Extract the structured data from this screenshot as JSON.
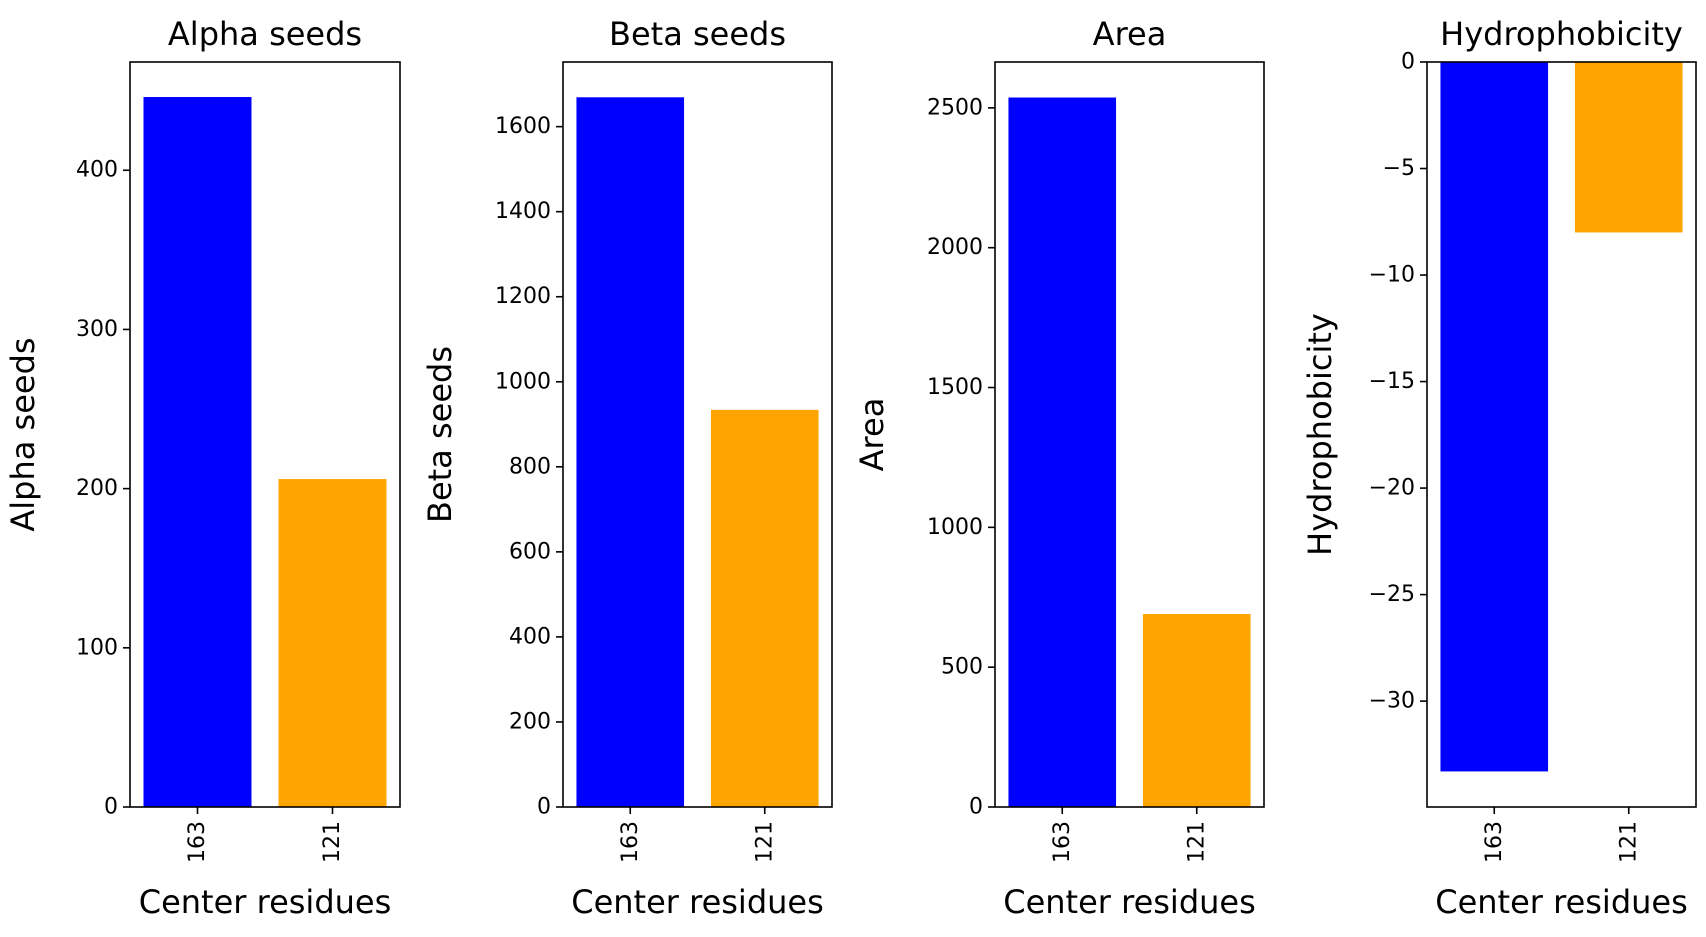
{
  "chart_data": [
    {
      "type": "bar",
      "title": "Alpha seeds",
      "xlabel": "Center residues",
      "ylabel": "Alpha seeds",
      "categories": [
        "163",
        "121"
      ],
      "values": [
        446,
        206
      ],
      "colors": [
        "#0000ff",
        "#ffa500"
      ],
      "ylim": [
        0,
        468
      ],
      "yticks": [
        0,
        100,
        200,
        300,
        400
      ],
      "yticklabels": [
        "0",
        "100",
        "200",
        "300",
        "400"
      ],
      "xtick_rotation": 90,
      "grid": false
    },
    {
      "type": "bar",
      "title": "Beta seeds",
      "xlabel": "Center residues",
      "ylabel": "Beta seeds",
      "categories": [
        "163",
        "121"
      ],
      "values": [
        1669,
        934
      ],
      "colors": [
        "#0000ff",
        "#ffa500"
      ],
      "ylim": [
        0,
        1752
      ],
      "yticks": [
        0,
        200,
        400,
        600,
        800,
        1000,
        1200,
        1400,
        1600
      ],
      "yticklabels": [
        "0",
        "200",
        "400",
        "600",
        "800",
        "1000",
        "1200",
        "1400",
        "1600"
      ],
      "xtick_rotation": 90,
      "grid": false
    },
    {
      "type": "bar",
      "title": "Area",
      "xlabel": "Center residues",
      "ylabel": "Area",
      "categories": [
        "163",
        "121"
      ],
      "values": [
        2537,
        690
      ],
      "colors": [
        "#0000ff",
        "#ffa500"
      ],
      "ylim": [
        0,
        2664
      ],
      "yticks": [
        0,
        500,
        1000,
        1500,
        2000,
        2500
      ],
      "yticklabels": [
        "0",
        "500",
        "1000",
        "1500",
        "2000",
        "2500"
      ],
      "xtick_rotation": 90,
      "grid": false
    },
    {
      "type": "bar",
      "title": "Hydrophobicity",
      "xlabel": "Center residues",
      "ylabel": "Hydrophobicity",
      "categories": [
        "163",
        "121"
      ],
      "values": [
        -33.3,
        -8.0
      ],
      "colors": [
        "#0000ff",
        "#ffa500"
      ],
      "ylim": [
        -34.97,
        0
      ],
      "yticks": [
        0,
        -5,
        -10,
        -15,
        -20,
        -25,
        -30
      ],
      "yticklabels": [
        "0",
        "−5",
        "−10",
        "−15",
        "−20",
        "−25",
        "−30"
      ],
      "xtick_rotation": 90,
      "grid": false
    }
  ]
}
